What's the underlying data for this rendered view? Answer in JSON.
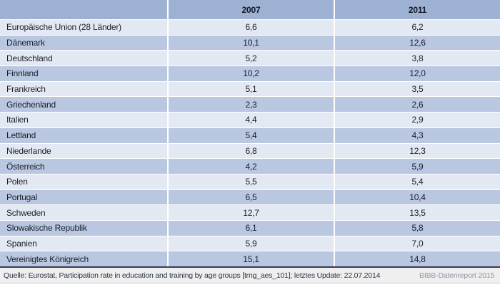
{
  "chart_data": {
    "type": "table",
    "columns": [
      "",
      "2007",
      "2011"
    ],
    "rows": [
      {
        "label": "Europäische Union (28 Länder)",
        "v2007": "6,6",
        "v2011": "6,2"
      },
      {
        "label": "Dänemark",
        "v2007": "10,1",
        "v2011": "12,6"
      },
      {
        "label": "Deutschland",
        "v2007": "5,2",
        "v2011": "3,8"
      },
      {
        "label": "Finnland",
        "v2007": "10,2",
        "v2011": "12,0"
      },
      {
        "label": "Frankreich",
        "v2007": "5,1",
        "v2011": "3,5"
      },
      {
        "label": "Griechenland",
        "v2007": "2,3",
        "v2011": "2,6"
      },
      {
        "label": "Italien",
        "v2007": "4,4",
        "v2011": "2,9"
      },
      {
        "label": "Lettland",
        "v2007": "5,4",
        "v2011": "4,3"
      },
      {
        "label": "Niederlande",
        "v2007": "6,8",
        "v2011": "12,3"
      },
      {
        "label": "Österreich",
        "v2007": "4,2",
        "v2011": "5,9"
      },
      {
        "label": "Polen",
        "v2007": "5,5",
        "v2011": "5,4"
      },
      {
        "label": "Portugal",
        "v2007": "6,5",
        "v2011": "10,4"
      },
      {
        "label": "Schweden",
        "v2007": "12,7",
        "v2011": "13,5"
      },
      {
        "label": "Slowakische Republik",
        "v2007": "6,1",
        "v2011": "5,8"
      },
      {
        "label": "Spanien",
        "v2007": "5,9",
        "v2011": "7,0"
      },
      {
        "label": "Vereinigtes Königreich",
        "v2007": "15,1",
        "v2011": "14,8"
      }
    ],
    "layout": {
      "value_alignment": "center",
      "row_striping": "alternating",
      "grid": "white separators"
    }
  },
  "footer": {
    "source": "Quelle: Eurostat, Participation rate in education and training by age groups [trng_aes_101]; letztes Update: 22.07.2014",
    "credit": "BIBB-Datenreport 2015"
  },
  "colors": {
    "header_bg": "#9db2d2",
    "row_light": "#e3e9f3",
    "row_dark": "#b9c7e0",
    "footer_bg": "#efefef",
    "footer_rule": "#333e55",
    "text": "#1c1f2a",
    "credit_text": "#9097a6"
  }
}
